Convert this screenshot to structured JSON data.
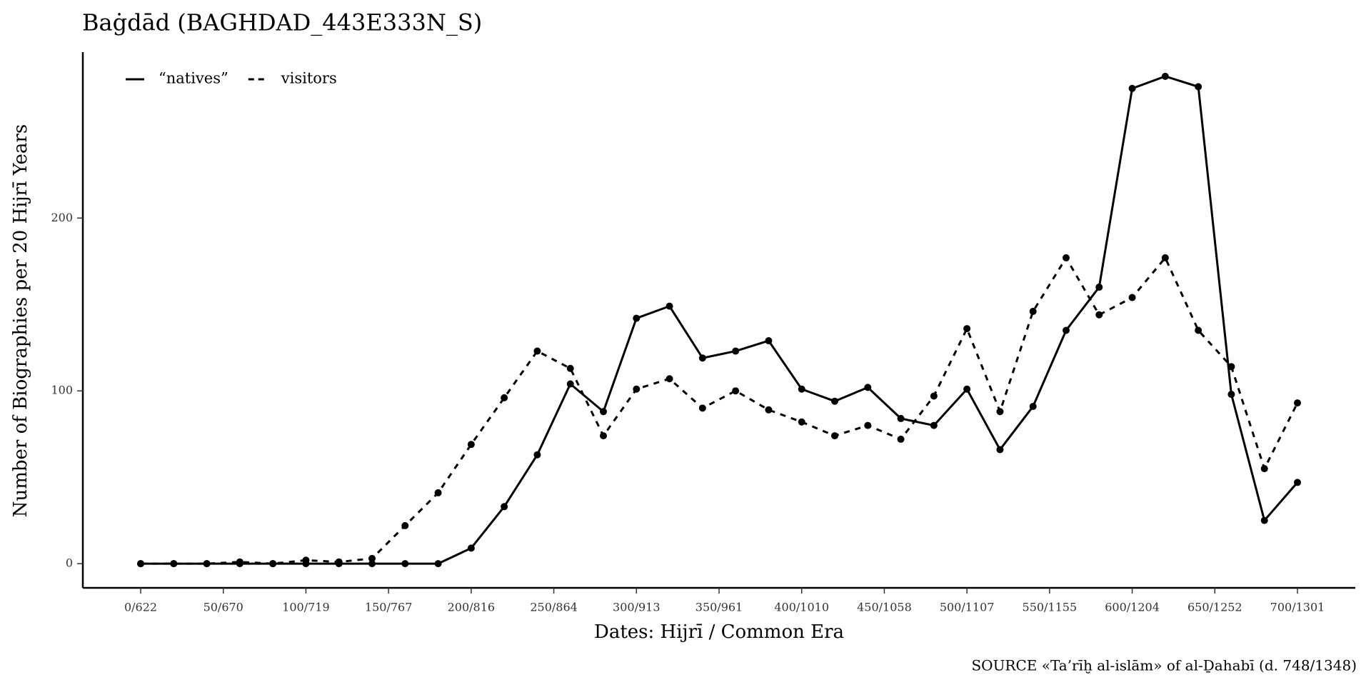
{
  "chart_data": {
    "type": "line",
    "title": "Baġdād (BAGHDAD_443E333N_S)",
    "xlabel": "Dates: Hijrī / Common Era",
    "ylabel": "Number of Biographies per 20 Hijrī Years",
    "source": "SOURCE «Ta’rīḫ al-islām» of al-Ḏahabī (d. 748/1348)",
    "x": [
      0,
      20,
      40,
      60,
      80,
      100,
      120,
      140,
      160,
      180,
      200,
      220,
      240,
      260,
      280,
      300,
      320,
      340,
      360,
      380,
      400,
      420,
      440,
      460,
      480,
      500,
      520,
      540,
      560,
      580,
      600,
      620,
      640,
      660,
      680,
      700
    ],
    "series": [
      {
        "name": "“natives”",
        "color": "#000000",
        "dash": false,
        "values": [
          0,
          0,
          0,
          0,
          0,
          0,
          0,
          0,
          0,
          0,
          9,
          33,
          63,
          104,
          88,
          142,
          149,
          119,
          123,
          129,
          101,
          94,
          102,
          84,
          80,
          101,
          66,
          91,
          135,
          160,
          275,
          282,
          276,
          98,
          25,
          47
        ]
      },
      {
        "name": "visitors",
        "color": "#000000",
        "dash": true,
        "values": [
          0,
          0,
          0,
          1,
          0,
          2,
          1,
          3,
          22,
          41,
          69,
          96,
          123,
          113,
          74,
          101,
          107,
          90,
          100,
          89,
          82,
          74,
          80,
          72,
          97,
          136,
          88,
          146,
          177,
          144,
          154,
          177,
          135,
          114,
          55,
          93
        ]
      }
    ],
    "xlim": [
      -35,
      735
    ],
    "xticks": [
      {
        "value": 0,
        "label": "0/622"
      },
      {
        "value": 50,
        "label": "50/670"
      },
      {
        "value": 100,
        "label": "100/719"
      },
      {
        "value": 150,
        "label": "150/767"
      },
      {
        "value": 200,
        "label": "200/816"
      },
      {
        "value": 250,
        "label": "250/864"
      },
      {
        "value": 300,
        "label": "300/913"
      },
      {
        "value": 350,
        "label": "350/961"
      },
      {
        "value": 400,
        "label": "400/1010"
      },
      {
        "value": 450,
        "label": "450/1058"
      },
      {
        "value": 500,
        "label": "500/1107"
      },
      {
        "value": 550,
        "label": "550/1155"
      },
      {
        "value": 600,
        "label": "600/1204"
      },
      {
        "value": 650,
        "label": "650/1252"
      },
      {
        "value": 700,
        "label": "700/1301"
      }
    ],
    "ylim": [
      -14,
      296
    ],
    "yticks": [
      0,
      100,
      200
    ],
    "grid": false,
    "legend": "top-left"
  }
}
